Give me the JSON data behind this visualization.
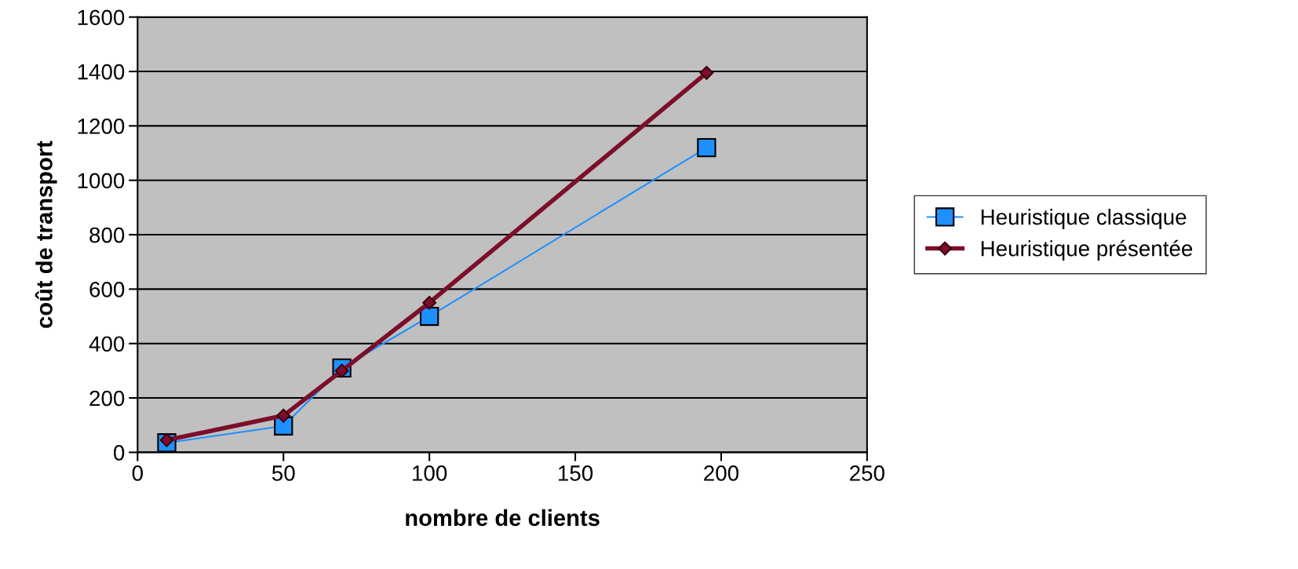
{
  "chart_data": {
    "type": "line",
    "xlabel": "nombre de clients",
    "ylabel": "coût de transport",
    "x": [
      10,
      50,
      70,
      100,
      195
    ],
    "series": [
      {
        "name": "Heuristique classique",
        "color": "#1e90ff",
        "values": [
          35,
          97,
          310,
          500,
          1120
        ],
        "marker": "square"
      },
      {
        "name": "Heuristique présentée",
        "color": "#7b0f2a",
        "values": [
          45,
          135,
          300,
          550,
          1395
        ],
        "marker": "diamond"
      }
    ],
    "xlim": [
      0,
      250
    ],
    "xticks": [
      0,
      50,
      100,
      150,
      200,
      250
    ],
    "ylim": [
      0,
      1600
    ],
    "yticks": [
      0,
      200,
      400,
      600,
      800,
      1000,
      1200,
      1400,
      1600
    ],
    "grid": "y",
    "legend": "right"
  }
}
